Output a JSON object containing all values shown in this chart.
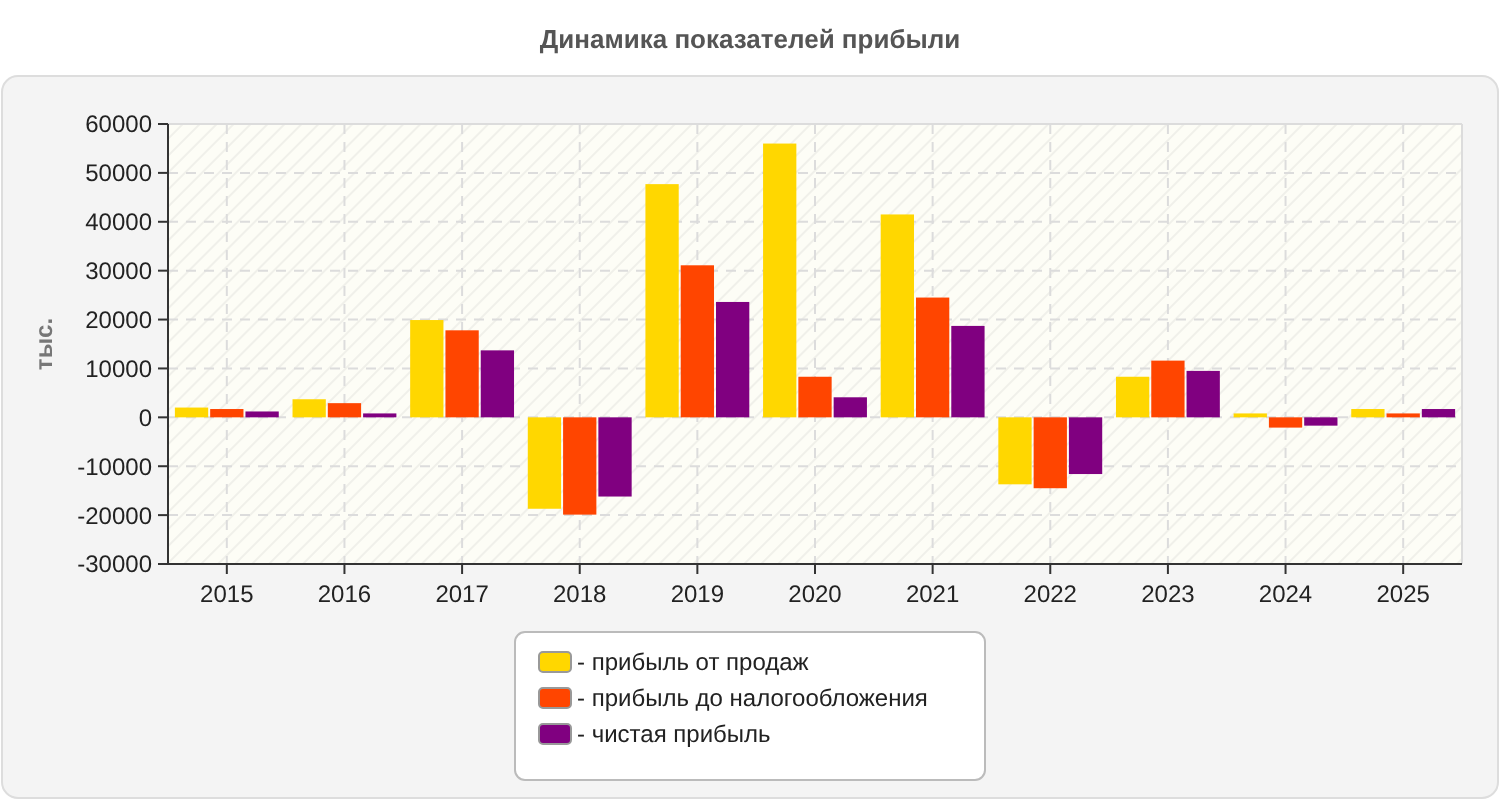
{
  "chart_data": {
    "type": "bar",
    "title": "Динамика показателей прибыли",
    "ylabel": "тыс.",
    "categories": [
      "2015",
      "2016",
      "2017",
      "2018",
      "2019",
      "2020",
      "2021",
      "2022",
      "2023",
      "2024",
      "2025"
    ],
    "series": [
      {
        "name": "- прибыль от продаж",
        "color": "#ffd700",
        "values": [
          2000,
          3700,
          19900,
          -18700,
          47700,
          56000,
          41500,
          -13700,
          8300,
          800,
          1700
        ]
      },
      {
        "name": "- прибыль до налогообложения",
        "color": "#ff4500",
        "values": [
          1700,
          2900,
          17800,
          -19900,
          31100,
          8300,
          24500,
          -14500,
          11600,
          -2100,
          800
        ]
      },
      {
        "name": "- чистая прибыль",
        "color": "#800080",
        "values": [
          1200,
          800,
          13700,
          -16200,
          23600,
          4100,
          18700,
          -11600,
          9500,
          -1700,
          1700
        ]
      }
    ],
    "ylim": [
      -30000,
      60000
    ],
    "yticks": [
      -30000,
      -20000,
      -10000,
      0,
      10000,
      20000,
      30000,
      40000,
      50000,
      60000
    ],
    "grid": true,
    "legend": "bottom"
  }
}
